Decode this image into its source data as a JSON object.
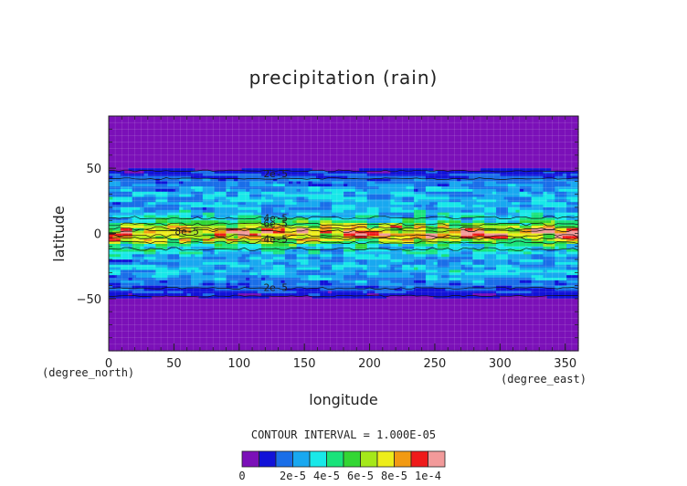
{
  "chart_data": {
    "type": "heatmap",
    "title": "precipitation (rain)",
    "xlabel": "longitude",
    "ylabel": "latitude",
    "x_unit": "(degree_east)",
    "y_unit": "(degree_north)",
    "xlim": [
      0,
      360
    ],
    "ylim": [
      -90,
      90
    ],
    "x_ticks": [
      0,
      50,
      100,
      150,
      200,
      250,
      300,
      350
    ],
    "y_ticks": [
      50,
      0,
      -50
    ],
    "x_tick_labels": [
      "0",
      "50",
      "100",
      "150",
      "200",
      "250",
      "300",
      "350"
    ],
    "y_tick_labels": [
      "50",
      "0",
      "−50"
    ],
    "contour_interval_text": "CONTOUR INTERVAL = 1.000E-05",
    "contour_labels": [
      "2e-5",
      "4e-5",
      "6e-5",
      "8e-5",
      "4e-5",
      "2e-5"
    ],
    "colorbar": {
      "colors": [
        "#7b10b8",
        "#1212d8",
        "#1a6ee8",
        "#19a8f0",
        "#19e8e8",
        "#19e37a",
        "#33d633",
        "#a5e81a",
        "#eded1a",
        "#f29a12",
        "#ef1a1a",
        "#f29a9a"
      ],
      "tick_labels": [
        "0",
        "2e-5",
        "4e-5",
        "6e-5",
        "8e-5",
        "1e-4"
      ]
    },
    "latitude_band_profile": {
      "lat": [
        -90,
        -60,
        -50,
        -45,
        -40,
        -30,
        -20,
        -10,
        -5,
        0,
        5,
        10,
        20,
        30,
        40,
        45,
        50,
        60,
        90
      ],
      "value": [
        0.0,
        0.0,
        0.0,
        8e-06,
        1.5e-05,
        2.5e-05,
        2.2e-05,
        3.6e-05,
        6.5e-05,
        8.5e-05,
        6.5e-05,
        3.6e-05,
        2.2e-05,
        2.5e-05,
        1.5e-05,
        8e-06,
        0.0,
        0.0,
        0.0
      ]
    }
  }
}
